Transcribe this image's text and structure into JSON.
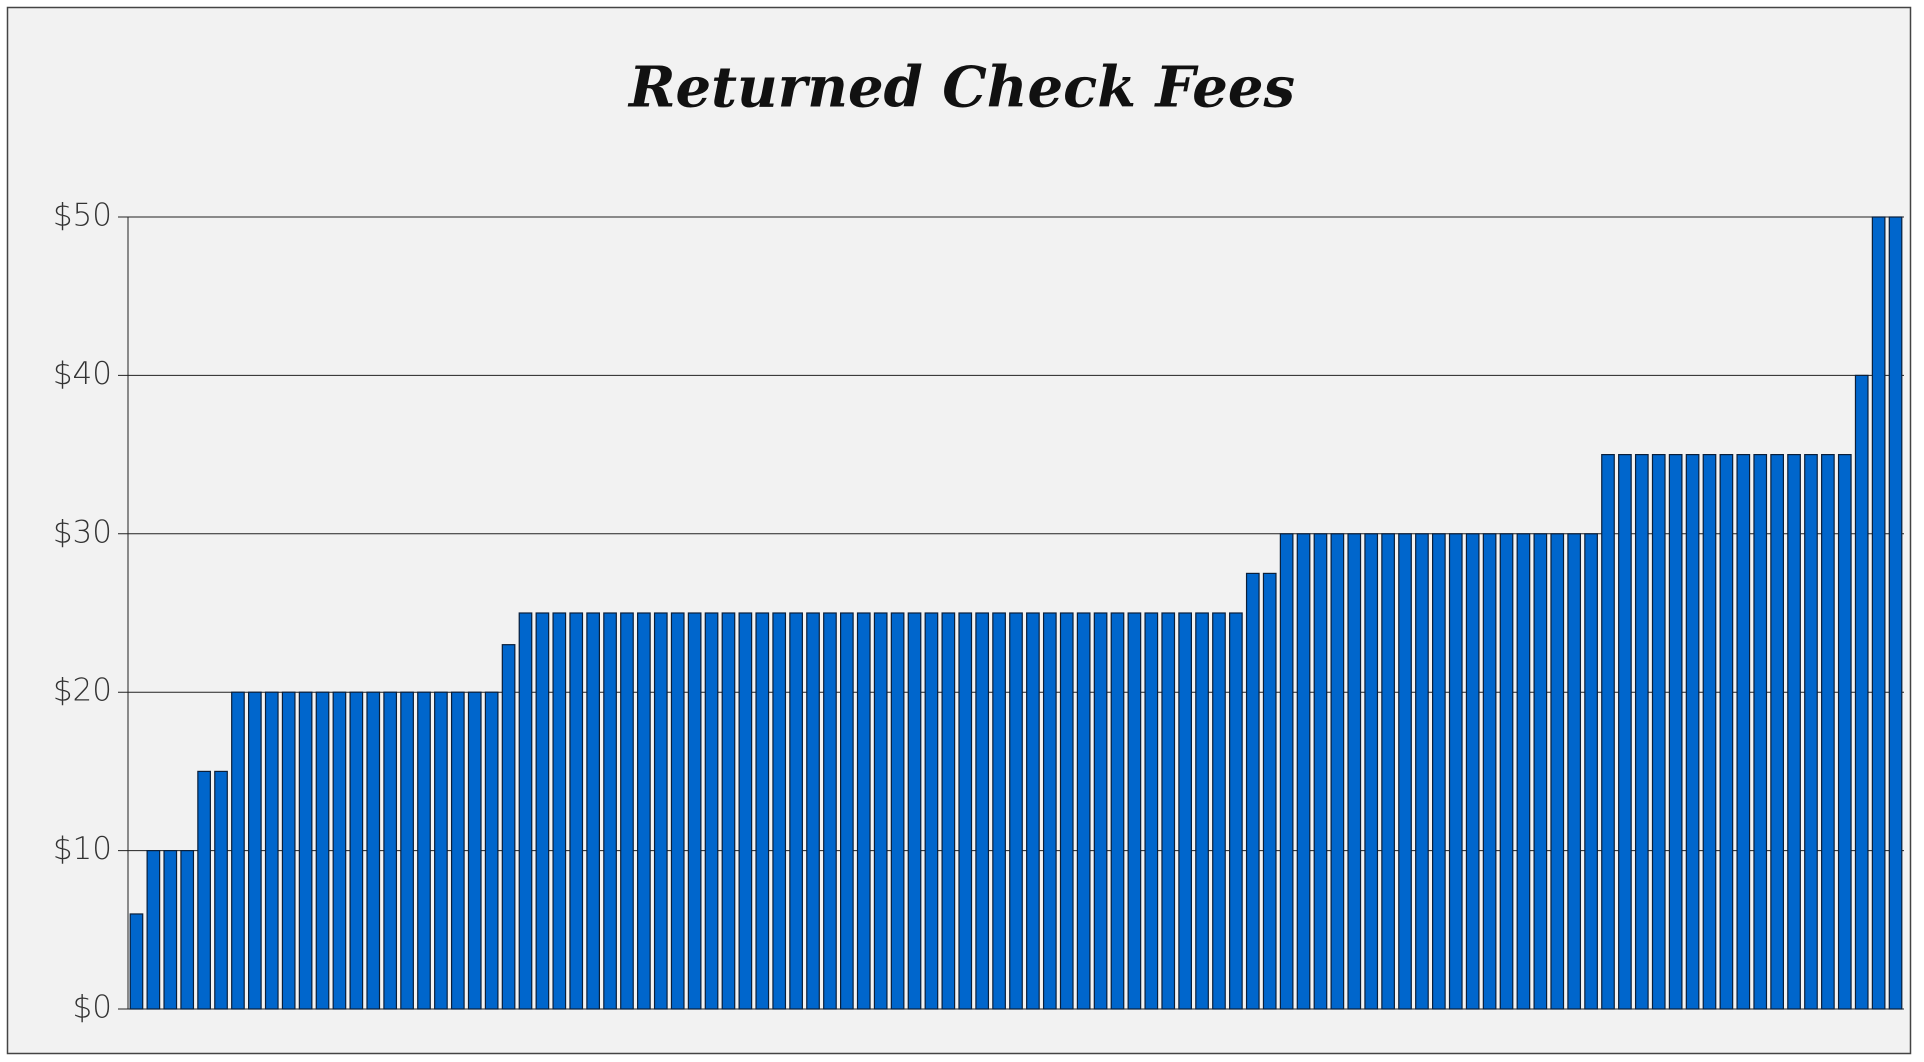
{
  "chart_data": {
    "type": "bar",
    "title": "Returned Check Fees",
    "values": [
      6,
      10,
      10,
      10,
      15,
      15,
      20,
      20,
      20,
      20,
      20,
      20,
      20,
      20,
      20,
      20,
      20,
      20,
      20,
      20,
      20,
      20,
      23,
      25,
      25,
      25,
      25,
      25,
      25,
      25,
      25,
      25,
      25,
      25,
      25,
      25,
      25,
      25,
      25,
      25,
      25,
      25,
      25,
      25,
      25,
      25,
      25,
      25,
      25,
      25,
      25,
      25,
      25,
      25,
      25,
      25,
      25,
      25,
      25,
      25,
      25,
      25,
      25,
      25,
      25,
      25,
      27.5,
      27.5,
      30,
      30,
      30,
      30,
      30,
      30,
      30,
      30,
      30,
      30,
      30,
      30,
      30,
      30,
      30,
      30,
      30,
      30,
      30,
      35,
      35,
      35,
      35,
      35,
      35,
      35,
      35,
      35,
      35,
      35,
      35,
      35,
      35,
      35,
      40,
      50,
      50
    ],
    "color": "#0066cc",
    "ylim": [
      0,
      50
    ],
    "yticks": [
      {
        "value": 0,
        "label": "$0"
      },
      {
        "value": 10,
        "label": "$10"
      },
      {
        "value": 20,
        "label": "$20"
      },
      {
        "value": 30,
        "label": "$30"
      },
      {
        "value": 40,
        "label": "$40"
      },
      {
        "value": 50,
        "label": "$50"
      }
    ],
    "grid": true
  }
}
